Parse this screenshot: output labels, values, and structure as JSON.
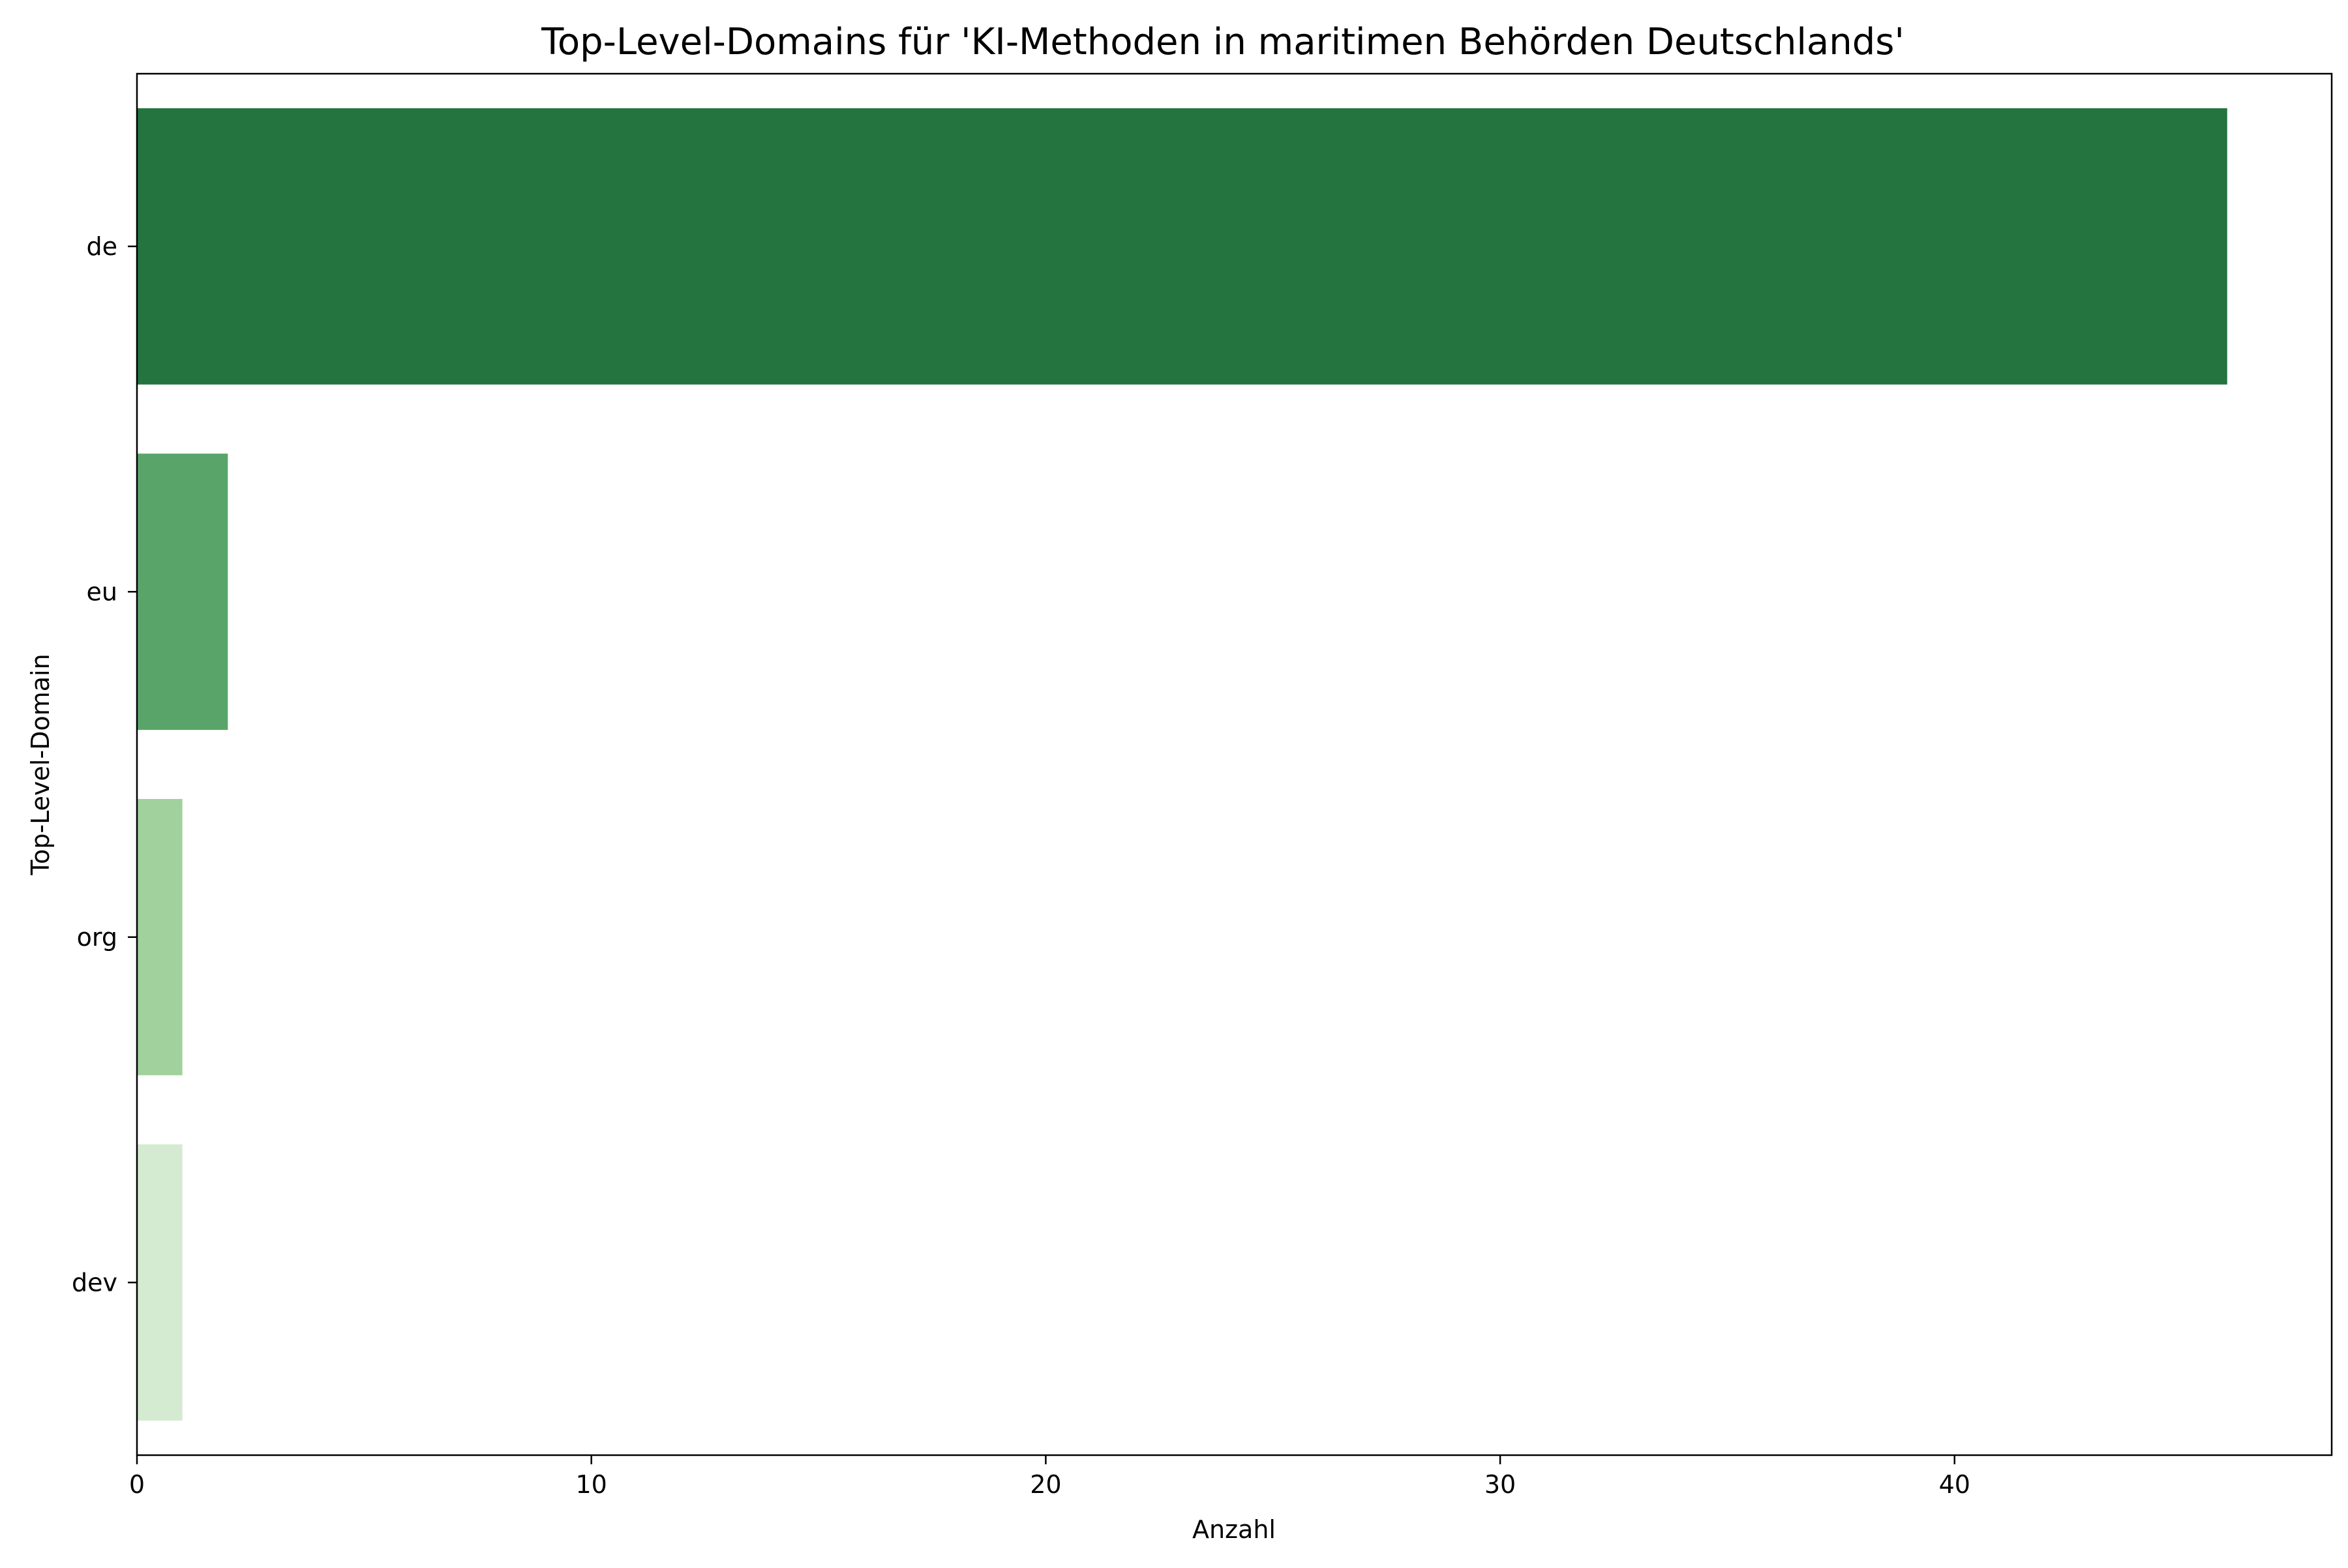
{
  "chart_data": {
    "type": "bar",
    "orientation": "horizontal",
    "title": "Top-Level-Domains für 'KI-Methoden in maritimen Behörden Deutschlands'",
    "xlabel": "Anzahl",
    "ylabel": "Top-Level-Domain",
    "categories": [
      "de",
      "eu",
      "org",
      "dev"
    ],
    "values": [
      46,
      2,
      1,
      1
    ],
    "colors": [
      "#23743f",
      "#59a569",
      "#a1d19c",
      "#d5ebd1"
    ],
    "xlim": [
      0,
      48.3
    ],
    "xticks": [
      0,
      10,
      20,
      30,
      40
    ],
    "grid": false,
    "legend": "none"
  }
}
